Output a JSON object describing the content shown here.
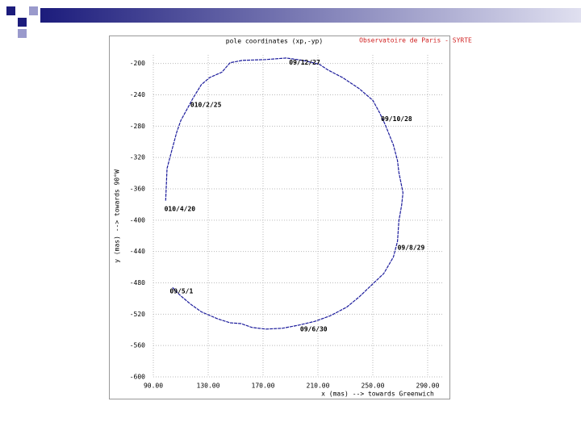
{
  "chart_data": {
    "type": "line",
    "title": "pole coordinates (xp,-yp)",
    "subtitle": "Observatoire de Paris - SYRTE",
    "x_label": "x (mas) --> towards Greenwich",
    "y_label": "y (mas) --> towards 90°W",
    "series": [
      {
        "color": "#1c1c9c",
        "x": [
          104,
          109,
          117,
          125,
          137,
          146,
          154,
          162,
          172,
          184,
          196,
          208,
          219,
          231,
          240,
          249,
          258,
          265,
          268,
          269,
          271,
          272,
          269,
          268,
          265,
          259,
          255,
          250,
          240,
          228,
          217,
          211,
          199,
          187,
          172,
          155,
          146,
          140,
          131,
          125,
          119,
          115,
          110,
          107,
          103,
          100,
          99
        ],
        "values": [
          -486,
          -495,
          -507,
          -517,
          -526,
          -531,
          -532,
          -537,
          -539,
          -538,
          -534,
          -529,
          -522,
          -511,
          -498,
          -483,
          -468,
          -447,
          -427,
          -401,
          -381,
          -365,
          -339,
          -324,
          -304,
          -278,
          -263,
          -247,
          -232,
          -218,
          -208,
          -201,
          -196,
          -193,
          -195,
          -196,
          -199,
          -211,
          -218,
          -227,
          -244,
          -257,
          -273,
          -288,
          -314,
          -334,
          -375
        ]
      }
    ],
    "annotations": [
      {
        "text": "09/5/1",
        "x": 102,
        "y": -491
      },
      {
        "text": "09/6/30",
        "x": 197,
        "y": -539
      },
      {
        "text": "09/8/29",
        "x": 268,
        "y": -435
      },
      {
        "text": "09/10/28",
        "x": 256,
        "y": -271
      },
      {
        "text": "09/12/27",
        "x": 189,
        "y": -199
      },
      {
        "text": "010/2/25",
        "x": 117,
        "y": -253
      },
      {
        "text": "010/4/20",
        "x": 98,
        "y": -386
      }
    ],
    "xlim": [
      90,
      300.6
    ],
    "ylim": [
      -600,
      -189
    ],
    "xticks": [
      {
        "value": 90,
        "label": "90.00"
      },
      {
        "value": 130,
        "label": "130.00"
      },
      {
        "value": 170,
        "label": "170.00"
      },
      {
        "value": 210,
        "label": "210.00"
      },
      {
        "value": 250,
        "label": "250.00"
      },
      {
        "value": 290,
        "label": "290.00"
      }
    ],
    "yticks": [
      -200,
      -240,
      -280,
      -320,
      -360,
      -400,
      -440,
      -480,
      -520,
      -560,
      -600
    ],
    "grid": true
  }
}
